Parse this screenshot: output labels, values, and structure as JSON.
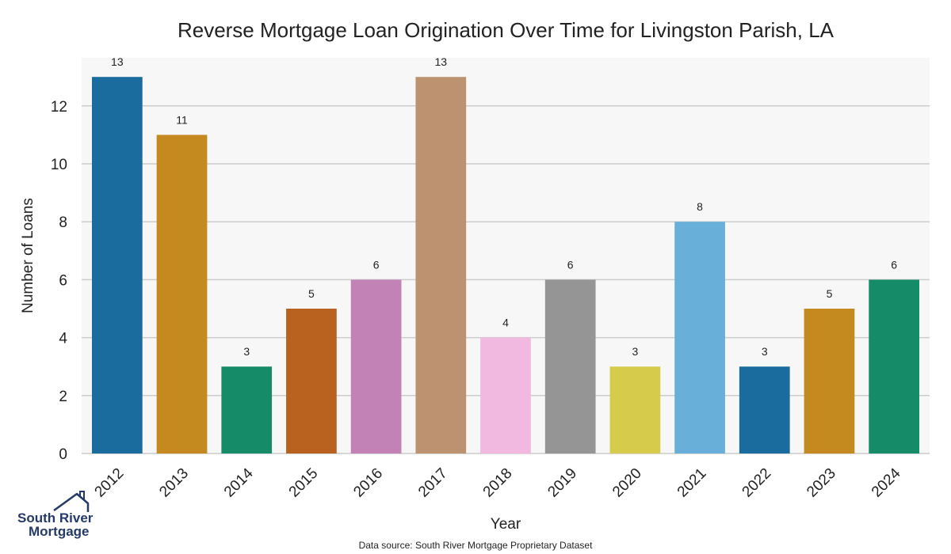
{
  "chart_data": {
    "type": "bar",
    "title": "Reverse Mortgage Loan Origination Over Time for Livingston Parish, LA",
    "xlabel": "Year",
    "ylabel": "Number of Loans",
    "categories": [
      "2012",
      "2013",
      "2014",
      "2015",
      "2016",
      "2017",
      "2018",
      "2019",
      "2020",
      "2021",
      "2022",
      "2023",
      "2024"
    ],
    "values": [
      13,
      11,
      3,
      5,
      6,
      13,
      4,
      6,
      3,
      8,
      3,
      5,
      6
    ],
    "colors": [
      "#1a6c9e",
      "#c4891f",
      "#168b68",
      "#b9611e",
      "#c382b6",
      "#bd9270",
      "#f1b8e0",
      "#959595",
      "#d6cb4b",
      "#68b0d9",
      "#1a6c9e",
      "#c4891f",
      "#168b68"
    ],
    "ylim": [
      0,
      13.5
    ],
    "yticks": [
      0,
      2,
      4,
      6,
      8,
      10,
      12
    ],
    "grid": "horizontal",
    "legend": "none"
  },
  "source": "Data source: South River Mortgage Proprietary Dataset",
  "logo": {
    "line1": "South River",
    "line2": "Mortgage"
  }
}
